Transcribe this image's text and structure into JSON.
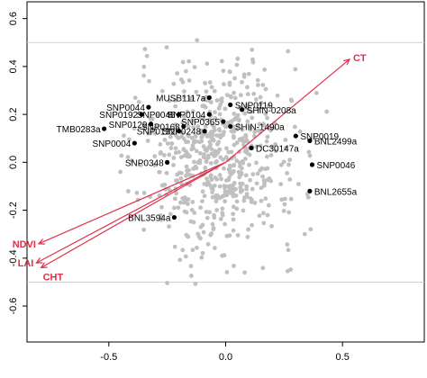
{
  "chart_data": {
    "type": "scatter",
    "title": "",
    "xlabel": "",
    "ylabel": "",
    "xlim": [
      -0.85,
      0.85
    ],
    "ylim": [
      -0.75,
      0.67
    ],
    "xticks": [
      -0.5,
      0.0,
      0.5
    ],
    "xtick_labels": [
      "-0.5",
      "0.0",
      "0.5"
    ],
    "yticks": [
      -0.6,
      -0.4,
      -0.2,
      0.0,
      0.2,
      0.4,
      0.6
    ],
    "ytick_labels": [
      "-0.6",
      "-0.4",
      "-0.2",
      "0.0",
      "0.2",
      "0.4",
      "0.6"
    ],
    "reference_lines_y": [
      0.5,
      -0.5
    ],
    "grid": false,
    "colors": {
      "cloud": "#c0c0c0",
      "labeled": "#000000",
      "vector": "#e0304a",
      "refline": "#d0d0d0"
    },
    "labeled_points": [
      {
        "label": "MUSB1117a",
        "x": -0.07,
        "y": 0.27
      },
      {
        "label": "SNP0119",
        "x": 0.02,
        "y": 0.24
      },
      {
        "label": "SNP0044",
        "x": -0.33,
        "y": 0.23
      },
      {
        "label": "SNP0192",
        "x": -0.36,
        "y": 0.2
      },
      {
        "label": "SNP0045",
        "x": -0.2,
        "y": 0.2
      },
      {
        "label": "SNP0104",
        "x": -0.07,
        "y": 0.2
      },
      {
        "label": "SHIN-0208a",
        "x": 0.07,
        "y": 0.22
      },
      {
        "label": "SNP0129",
        "x": -0.32,
        "y": 0.16
      },
      {
        "label": "SNP0365",
        "x": -0.01,
        "y": 0.17
      },
      {
        "label": "SNP0168",
        "x": -0.18,
        "y": 0.15
      },
      {
        "label": "TMB0283a",
        "x": -0.52,
        "y": 0.14
      },
      {
        "label": "SNP0132",
        "x": -0.2,
        "y": 0.13
      },
      {
        "label": "SNP0248",
        "x": -0.09,
        "y": 0.13
      },
      {
        "label": "SHIN-1490a",
        "x": 0.02,
        "y": 0.15
      },
      {
        "label": "SNP0019",
        "x": 0.3,
        "y": 0.11
      },
      {
        "label": "SNP0004",
        "x": -0.39,
        "y": 0.08
      },
      {
        "label": "BNL2499a",
        "x": 0.36,
        "y": 0.09
      },
      {
        "label": "DC30147a",
        "x": 0.11,
        "y": 0.06
      },
      {
        "label": "SNP0348",
        "x": -0.25,
        "y": 0.0
      },
      {
        "label": "SNP0046",
        "x": 0.37,
        "y": -0.01
      },
      {
        "label": "BNL2655a",
        "x": 0.36,
        "y": -0.12
      },
      {
        "label": "BNL3594a",
        "x": -0.22,
        "y": -0.23
      }
    ],
    "vectors": [
      {
        "label": "CT",
        "x": 0.53,
        "y": 0.43
      },
      {
        "label": "NDVI",
        "x": -0.8,
        "y": -0.34
      },
      {
        "label": "LAI",
        "x": -0.81,
        "y": -0.42
      },
      {
        "label": "CHT",
        "x": -0.79,
        "y": -0.44
      }
    ]
  }
}
